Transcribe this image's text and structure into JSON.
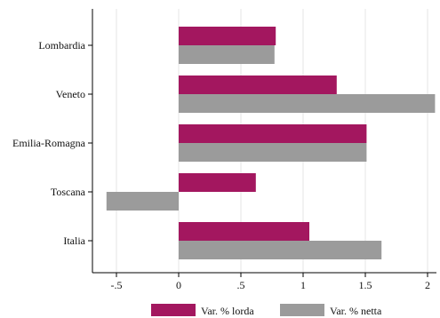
{
  "chart_data": {
    "type": "bar",
    "orientation": "horizontal",
    "categories": [
      "Lombardia",
      "Veneto",
      "Emilia-Romagna",
      "Toscana",
      "Italia"
    ],
    "series": [
      {
        "name": "Var. % lorda",
        "color": "#a3175f",
        "values": [
          0.78,
          1.27,
          1.51,
          0.62,
          1.05
        ]
      },
      {
        "name": "Var. % netta",
        "color": "#9b9b9b",
        "values": [
          0.77,
          2.06,
          1.51,
          -0.58,
          1.63
        ]
      }
    ],
    "x_ticks": [
      -0.5,
      0,
      0.5,
      1,
      1.5,
      2
    ],
    "x_tick_labels": [
      "-.5",
      "0",
      ".5",
      "1",
      "1.5",
      "2"
    ],
    "xlim": [
      -0.7,
      2.08
    ],
    "grid": "vertical",
    "legend_position": "bottom-center",
    "title": "",
    "xlabel": "",
    "ylabel": ""
  }
}
